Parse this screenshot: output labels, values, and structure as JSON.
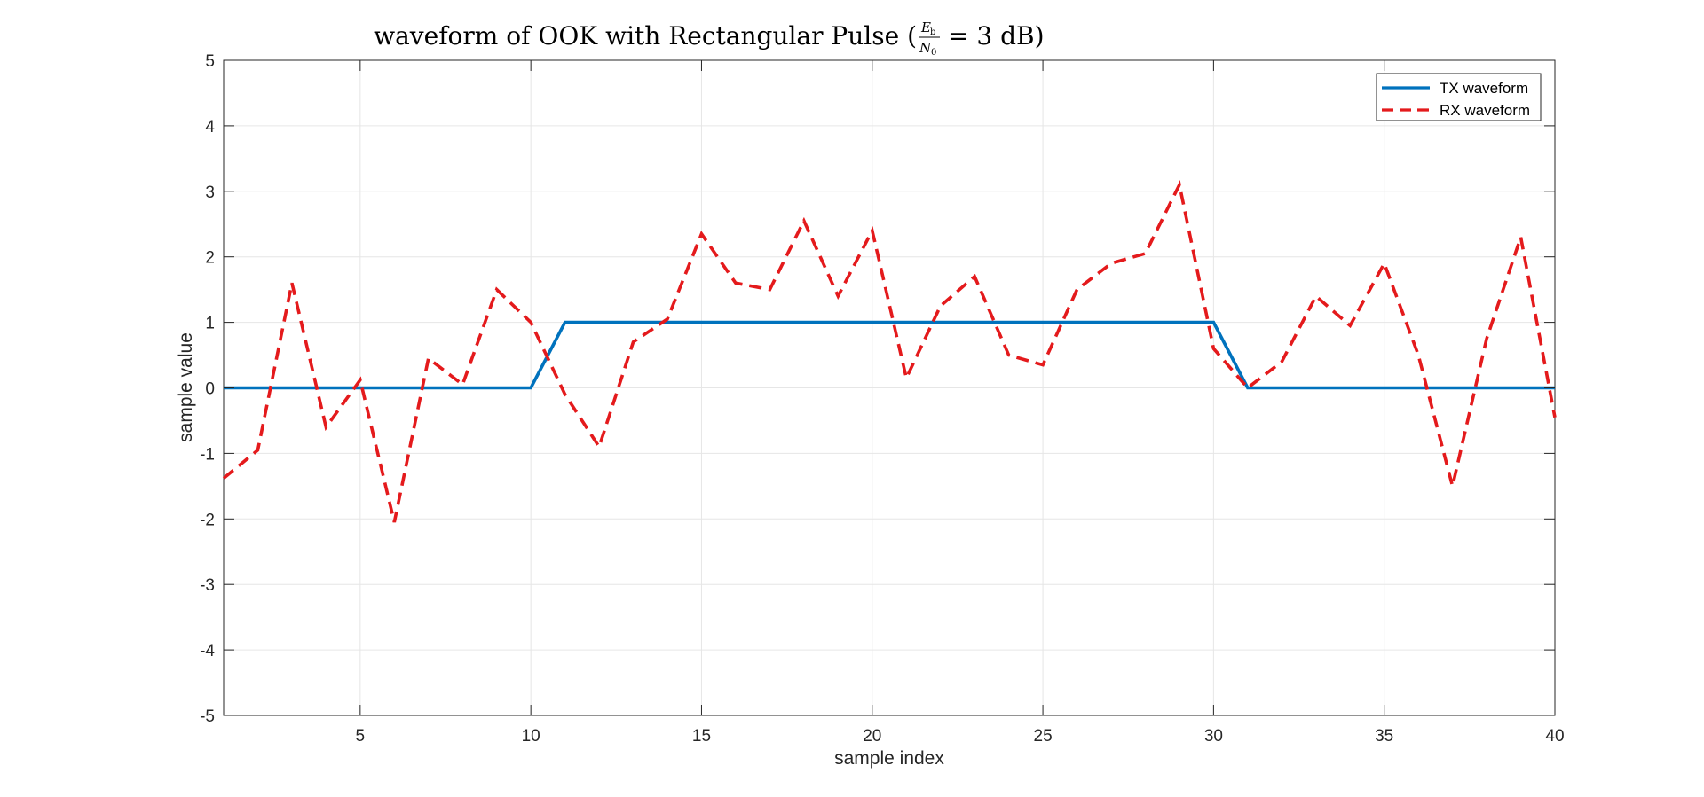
{
  "colors": {
    "tx": "#0072BD",
    "rx": "#E41A1C",
    "grid": "#E6E6E6",
    "axis": "#262626"
  },
  "chart_data": {
    "type": "line",
    "title": {
      "prefix": "waveform of OOK with Rectangular Pulse (",
      "frac_num": "E",
      "frac_num_sub": "b",
      "frac_den": "N",
      "frac_den_sub": "0",
      "suffix": "= 3 dB)"
    },
    "xlabel": "sample index",
    "ylabel": "sample value",
    "xlim": [
      1,
      40
    ],
    "ylim": [
      -5,
      5
    ],
    "xticks": [
      5,
      10,
      15,
      20,
      25,
      30,
      35,
      40
    ],
    "xtick_labels": [
      "5",
      "10",
      "15",
      "20",
      "25",
      "30",
      "35",
      "40"
    ],
    "yticks": [
      -5,
      -4,
      -3,
      -2,
      -1,
      0,
      1,
      2,
      3,
      4,
      5
    ],
    "ytick_labels": [
      "-5",
      "-4",
      "-3",
      "-2",
      "-1",
      "0",
      "1",
      "2",
      "3",
      "4",
      "5"
    ],
    "grid": true,
    "legend_position": "top-right",
    "x": [
      1,
      2,
      3,
      4,
      5,
      6,
      7,
      8,
      9,
      10,
      11,
      12,
      13,
      14,
      15,
      16,
      17,
      18,
      19,
      20,
      21,
      22,
      23,
      24,
      25,
      26,
      27,
      28,
      29,
      30,
      31,
      32,
      33,
      34,
      35,
      36,
      37,
      38,
      39,
      40
    ],
    "series": [
      {
        "name": "TX waveform",
        "style": "solid",
        "values": [
          0,
          0,
          0,
          0,
          0,
          0,
          0,
          0,
          0,
          0,
          1,
          1,
          1,
          1,
          1,
          1,
          1,
          1,
          1,
          1,
          1,
          1,
          1,
          1,
          1,
          1,
          1,
          1,
          1,
          1,
          0,
          0,
          0,
          0,
          0,
          0,
          0,
          0,
          0,
          0
        ]
      },
      {
        "name": "RX waveform",
        "style": "dashed",
        "values": [
          -1.38,
          -0.95,
          1.6,
          -0.6,
          0.12,
          -2.05,
          0.45,
          0.05,
          1.5,
          1.0,
          -0.1,
          -0.9,
          0.7,
          1.05,
          2.35,
          1.6,
          1.5,
          2.55,
          1.4,
          2.4,
          0.15,
          1.25,
          1.7,
          0.5,
          0.35,
          1.5,
          1.9,
          2.05,
          3.1,
          0.6,
          0.0,
          0.4,
          1.4,
          0.95,
          1.9,
          0.5,
          -1.5,
          0.75,
          2.3,
          -0.45
        ]
      }
    ]
  }
}
